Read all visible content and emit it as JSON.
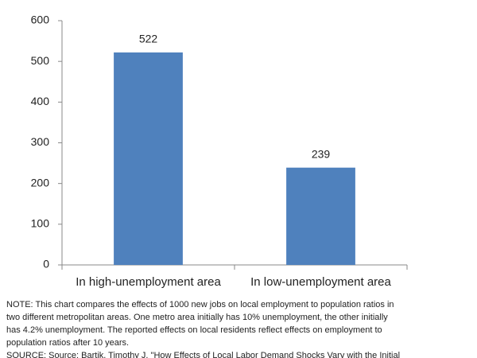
{
  "chart_data": {
    "type": "bar",
    "categories": [
      "In high-unemployment area",
      "In low-unemployment area"
    ],
    "values": [
      522,
      239
    ],
    "color": "#4f81bd",
    "ylim": [
      0,
      600
    ],
    "yticks": [
      0,
      100,
      200,
      300,
      400,
      500,
      600
    ],
    "grid": false,
    "note_lines": [
      "NOTE: This chart compares the effects of 1000 new jobs on local employment to population ratios in",
      "two different metropolitan areas. One metro area initially has 10% unemployment, the other initially",
      "has 4.2% unemployment. The reported effects on local residents reflect effects on employment to",
      "population ratios after 10 years.",
      "SOURCE: Source: Bartik, Timothy J. \"How Effects of Local Labor Demand Shocks Vary with the Initial"
    ]
  }
}
